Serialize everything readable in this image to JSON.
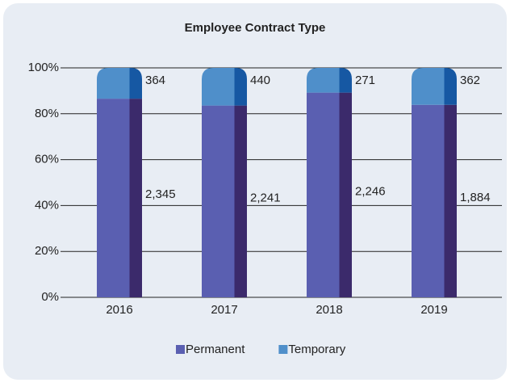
{
  "chart_data": {
    "type": "bar",
    "stacking": "percent",
    "title": "Employee Contract Type",
    "categories": [
      "2016",
      "2017",
      "2018",
      "2019"
    ],
    "series": [
      {
        "name": "Permanent",
        "color": "#5a5fb1",
        "side_color": "#3b2a6b",
        "values": [
          2345,
          2241,
          2246,
          1884
        ],
        "value_labels": [
          "2,345",
          "2,241",
          "2,246",
          "1,884"
        ]
      },
      {
        "name": "Temporary",
        "color": "#4f8fca",
        "side_color": "#1658a3",
        "values": [
          364,
          440,
          271,
          362
        ]
      }
    ],
    "ylim": [
      0,
      100
    ],
    "yticks": [
      {
        "value": 0,
        "label": "0%"
      },
      {
        "value": 20,
        "label": "20%"
      },
      {
        "value": 40,
        "label": "40%"
      },
      {
        "value": 60,
        "label": "60%"
      },
      {
        "value": 80,
        "label": "80%"
      },
      {
        "value": 100,
        "label": "100%"
      }
    ],
    "grid": true,
    "legend": "bottom"
  }
}
